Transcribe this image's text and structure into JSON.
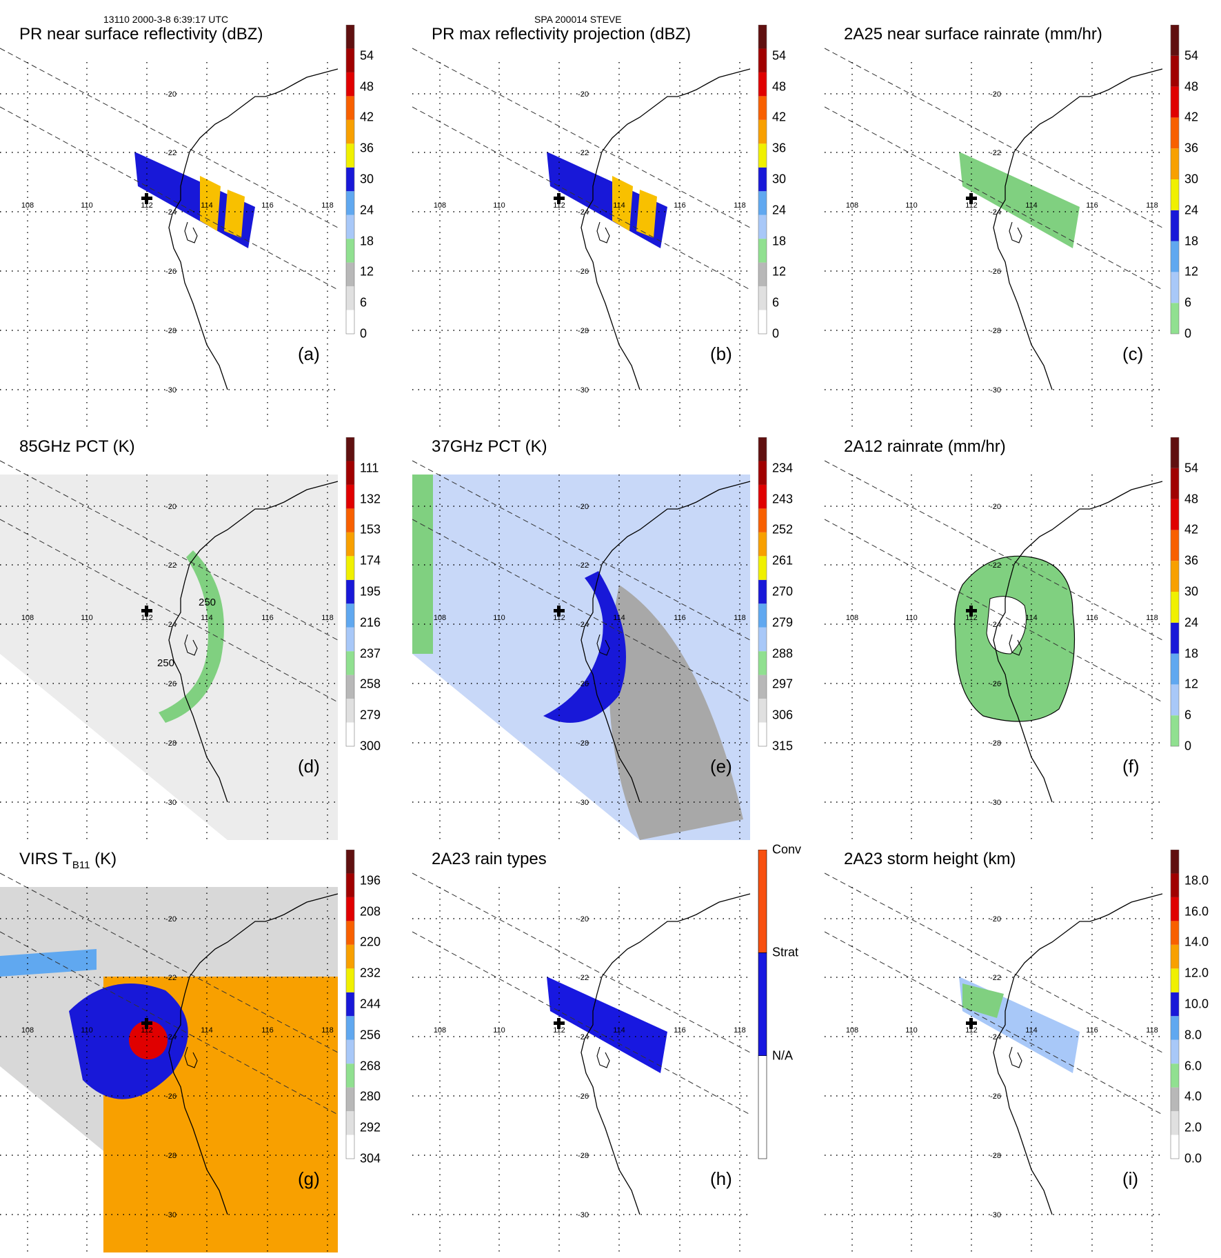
{
  "header": {
    "left": "13110 2000-3-8 6:39:17 UTC",
    "center": "SPA 200014 STEVE"
  },
  "map": {
    "lon_labels": [
      "108",
      "110",
      "112",
      "114",
      "116",
      "118"
    ],
    "lat_labels": [
      "-20",
      "-22",
      "-24",
      "-26",
      "-28",
      "-30"
    ],
    "storm_center_marker": "plus-marker"
  },
  "panels": [
    {
      "id": "a",
      "title": "PR near surface reflectivity (dBZ)",
      "label": "(a)",
      "scale": [
        "0",
        "6",
        "12",
        "18",
        "24",
        "30",
        "36",
        "42",
        "48",
        "54"
      ],
      "colors": "reflectivity"
    },
    {
      "id": "b",
      "title": "PR max reflectivity projection (dBZ)",
      "label": "(b)",
      "scale": [
        "0",
        "6",
        "12",
        "18",
        "24",
        "30",
        "36",
        "42",
        "48",
        "54"
      ],
      "colors": "reflectivity"
    },
    {
      "id": "c",
      "title": "2A25 near surface rainrate (mm/hr)",
      "label": "(c)",
      "scale": [
        "0",
        "6",
        "12",
        "18",
        "24",
        "30",
        "36",
        "42",
        "48",
        "54"
      ],
      "colors": "rainrate"
    },
    {
      "id": "d",
      "title": "85GHz PCT (K)",
      "label": "(d)",
      "scale": [
        "300",
        "279",
        "258",
        "237",
        "216",
        "195",
        "174",
        "153",
        "132",
        "111"
      ],
      "colors": "pct",
      "contour": "250"
    },
    {
      "id": "e",
      "title": "37GHz PCT (K)",
      "label": "(e)",
      "scale": [
        "315",
        "306",
        "297",
        "288",
        "279",
        "270",
        "261",
        "252",
        "243",
        "234"
      ],
      "colors": "pct"
    },
    {
      "id": "f",
      "title": "2A12 rainrate (mm/hr)",
      "label": "(f)",
      "scale": [
        "0",
        "6",
        "12",
        "18",
        "24",
        "30",
        "36",
        "42",
        "48",
        "54"
      ],
      "colors": "rainrate"
    },
    {
      "id": "g",
      "title": "VIRS T",
      "title_sub": "B11",
      "title_after": " (K)",
      "label": "(g)",
      "scale": [
        "304",
        "292",
        "280",
        "268",
        "256",
        "244",
        "232",
        "220",
        "208",
        "196"
      ],
      "colors": "virs"
    },
    {
      "id": "h",
      "title": "2A23 rain types",
      "label": "(h)",
      "scale": [
        "N/A",
        "Strat",
        "Conv"
      ],
      "colors": "types"
    },
    {
      "id": "i",
      "title": "2A23 storm height (km)",
      "label": "(i)",
      "scale": [
        "0.0",
        "2.0",
        "4.0",
        "6.0",
        "8.0",
        "10.0",
        "12.0",
        "14.0",
        "16.0",
        "18.0"
      ],
      "colors": "height"
    }
  ],
  "palettes": {
    "reflectivity": [
      "#ffffff",
      "#e0e0e0",
      "#b8b8b8",
      "#90e090",
      "#a8c8f8",
      "#60a8f0",
      "#1818d8",
      "#f0f000",
      "#f8a000",
      "#f86000",
      "#e00000",
      "#a00000",
      "#601010"
    ],
    "rainrate": [
      "#90e090",
      "#a8c8f8",
      "#60a8f0",
      "#1818d8",
      "#f0f000",
      "#f8a000",
      "#f86000",
      "#e00000",
      "#a00000",
      "#601010"
    ],
    "pct": [
      "#ffffff",
      "#e0e0e0",
      "#b8b8b8",
      "#90e090",
      "#a8c8f8",
      "#60a8f0",
      "#1818d8",
      "#f0f000",
      "#f8a000",
      "#f86000",
      "#e00000",
      "#a00000",
      "#601010"
    ],
    "virs": [
      "#ffffff",
      "#e0e0e0",
      "#b8b8b8",
      "#90e090",
      "#a8c8f8",
      "#60a8f0",
      "#1818d8",
      "#f0f000",
      "#f8a000",
      "#f86000",
      "#e00000",
      "#a00000",
      "#601010"
    ],
    "height": [
      "#ffffff",
      "#e0e0e0",
      "#b8b8b8",
      "#90e090",
      "#a8c8f8",
      "#60a8f0",
      "#1818d8",
      "#f0f000",
      "#f8a000",
      "#f86000",
      "#e00000",
      "#a00000",
      "#601010"
    ],
    "types": [
      "#ffffff",
      "#1818e0",
      "#f85010"
    ]
  }
}
